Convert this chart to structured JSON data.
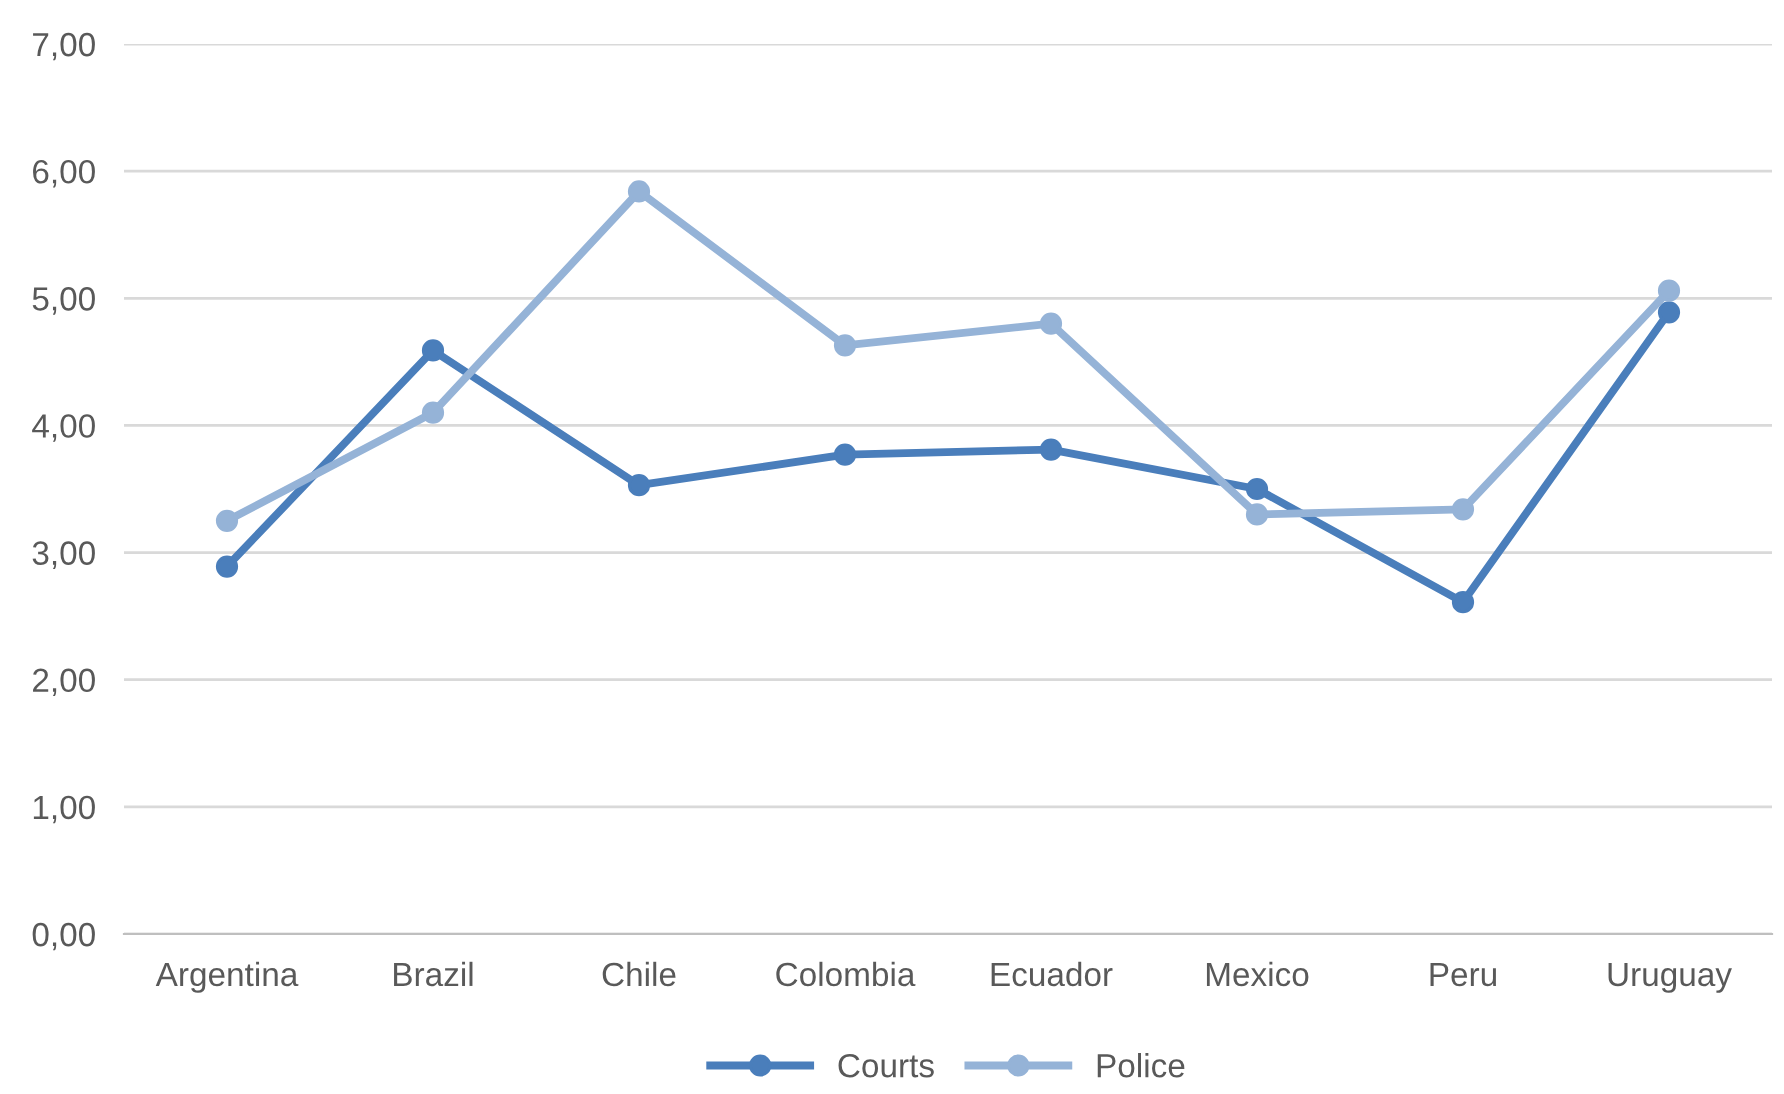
{
  "chart_data": {
    "type": "line",
    "categories": [
      "Argentina",
      "Brazil",
      "Chile",
      "Colombia",
      "Ecuador",
      "Mexico",
      "Peru",
      "Uruguay"
    ],
    "series": [
      {
        "name": "Courts",
        "color": "#4a7ebb",
        "values": [
          2.89,
          4.59,
          3.53,
          3.77,
          3.81,
          3.5,
          2.61,
          4.89
        ]
      },
      {
        "name": "Police",
        "color": "#95b3d7",
        "values": [
          3.25,
          4.1,
          5.84,
          4.63,
          4.8,
          3.3,
          3.34,
          5.06
        ]
      }
    ],
    "ylim": [
      0,
      7
    ],
    "yticks": [
      {
        "value": 0,
        "label": "0,00"
      },
      {
        "value": 1,
        "label": "1,00"
      },
      {
        "value": 2,
        "label": "2,00"
      },
      {
        "value": 3,
        "label": "3,00"
      },
      {
        "value": 4,
        "label": "4,00"
      },
      {
        "value": 5,
        "label": "5,00"
      },
      {
        "value": 6,
        "label": "6,00"
      },
      {
        "value": 7,
        "label": "7,00"
      }
    ],
    "grid": "y",
    "legend": "bottom",
    "marker": "circle",
    "line_style": "solid"
  }
}
